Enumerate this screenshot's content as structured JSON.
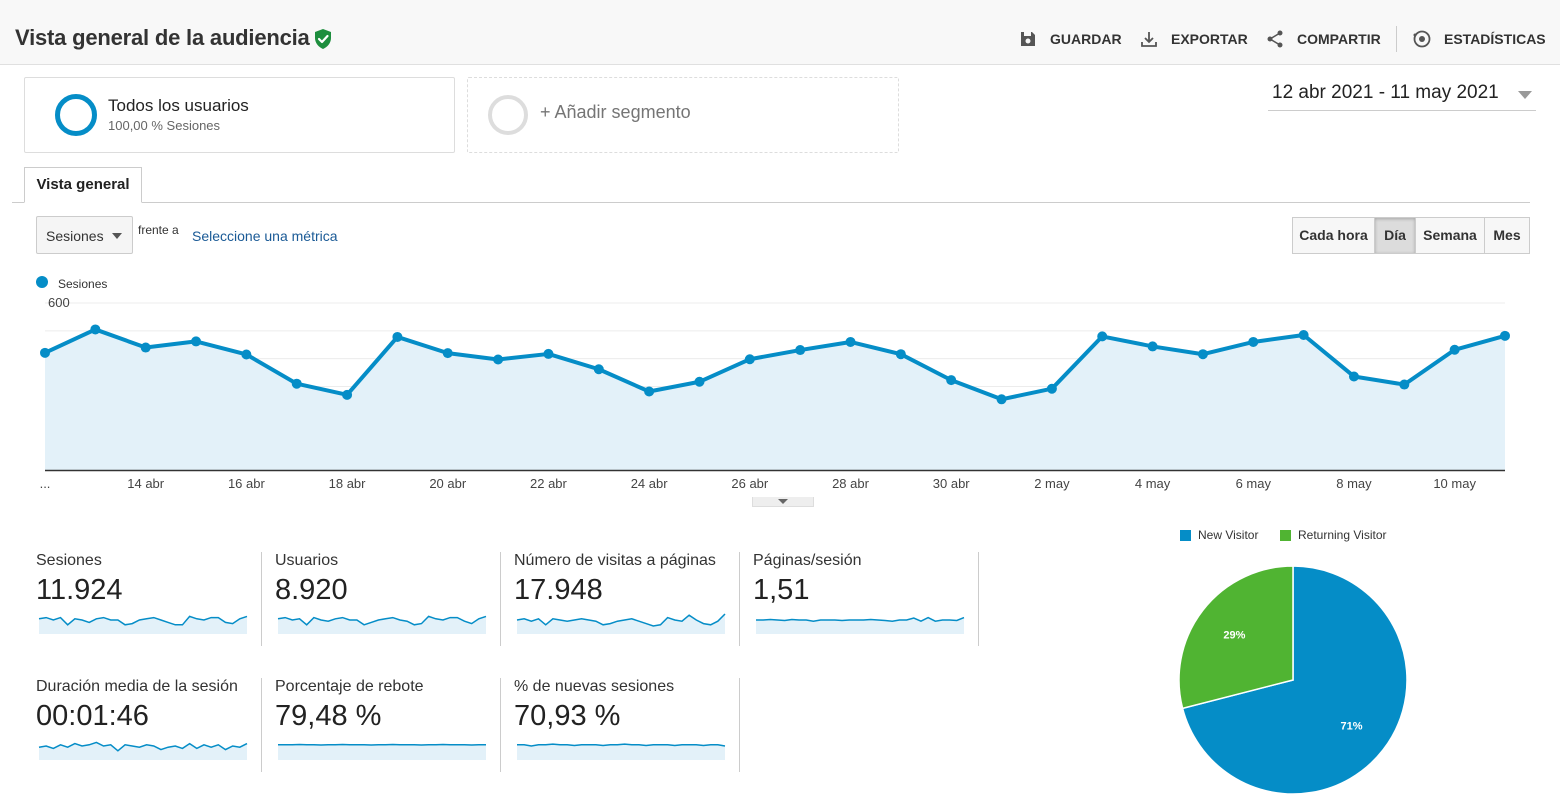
{
  "header": {
    "title": "Vista general de la audiencia",
    "actions": [
      {
        "label": "GUARDAR",
        "icon": "save-icon"
      },
      {
        "label": "EXPORTAR",
        "icon": "download-icon"
      },
      {
        "label": "COMPARTIR",
        "icon": "share-icon"
      },
      {
        "label": "ESTADÍSTICAS",
        "icon": "insights-icon"
      }
    ]
  },
  "segments": {
    "active": {
      "name": "Todos los usuarios",
      "sub": "100,00 % Sesiones",
      "color": "#058dc7"
    },
    "add_label": "+ Añadir segmento"
  },
  "date_range": "12 abr 2021 - 11 may 2021",
  "tabs": [
    {
      "label": "Vista general"
    }
  ],
  "controls": {
    "metric": "Sesiones",
    "vs_label": "frente a",
    "select_metric": "Seleccione una métrica",
    "granularity": [
      "Cada hora",
      "Día",
      "Semana",
      "Mes"
    ],
    "granularity_active": "Día"
  },
  "chart_data": [
    {
      "type": "area",
      "series": [
        {
          "name": "Sesiones",
          "color": "#058dc7",
          "values": [
            421,
            505,
            440,
            462,
            415,
            310,
            270,
            478,
            420,
            397,
            417,
            362,
            282,
            317,
            398,
            431,
            460,
            416,
            323,
            254,
            292,
            480,
            444,
            416,
            460,
            485,
            336,
            307,
            432,
            482
          ]
        }
      ],
      "x_labels": [
        "...",
        "14 abr",
        "16 abr",
        "18 abr",
        "20 abr",
        "22 abr",
        "24 abr",
        "26 abr",
        "28 abr",
        "30 abr",
        "2 may",
        "4 may",
        "6 may",
        "8 may",
        "10 may"
      ],
      "y_ticks": [
        200,
        400,
        600
      ],
      "ylim": [
        0,
        600
      ],
      "legend": "top-left",
      "grid": true
    },
    {
      "type": "pie",
      "labels": [
        "New Visitor",
        "Returning Visitor"
      ],
      "values": [
        71,
        29
      ],
      "value_labels": [
        "71%",
        "29%"
      ],
      "colors": [
        "#058dc7",
        "#50b432"
      ],
      "legend": "top"
    }
  ],
  "stats": [
    {
      "label": "Sesiones",
      "value": "11.924",
      "spark": [
        0.55,
        0.6,
        0.5,
        0.6,
        0.3,
        0.55,
        0.5,
        0.4,
        0.55,
        0.6,
        0.5,
        0.5,
        0.3,
        0.35,
        0.5,
        0.55,
        0.6,
        0.5,
        0.4,
        0.3,
        0.3,
        0.65,
        0.55,
        0.5,
        0.6,
        0.6,
        0.4,
        0.35,
        0.55,
        0.65
      ]
    },
    {
      "label": "Usuarios",
      "value": "8.920",
      "spark": [
        0.55,
        0.6,
        0.5,
        0.55,
        0.3,
        0.6,
        0.5,
        0.45,
        0.55,
        0.6,
        0.5,
        0.5,
        0.3,
        0.4,
        0.5,
        0.55,
        0.6,
        0.5,
        0.45,
        0.3,
        0.35,
        0.65,
        0.55,
        0.5,
        0.6,
        0.6,
        0.45,
        0.35,
        0.55,
        0.65
      ]
    },
    {
      "label": "Número de visitas a páginas",
      "value": "17.948",
      "spark": [
        0.5,
        0.55,
        0.45,
        0.55,
        0.3,
        0.55,
        0.5,
        0.45,
        0.5,
        0.55,
        0.5,
        0.45,
        0.3,
        0.35,
        0.45,
        0.5,
        0.55,
        0.45,
        0.35,
        0.25,
        0.3,
        0.6,
        0.5,
        0.45,
        0.7,
        0.5,
        0.35,
        0.3,
        0.45,
        0.75
      ]
    },
    {
      "label": "Páginas/sesión",
      "value": "1,51",
      "spark": [
        0.5,
        0.5,
        0.52,
        0.5,
        0.48,
        0.52,
        0.5,
        0.5,
        0.45,
        0.5,
        0.5,
        0.5,
        0.48,
        0.5,
        0.5,
        0.5,
        0.52,
        0.5,
        0.48,
        0.45,
        0.5,
        0.5,
        0.58,
        0.45,
        0.6,
        0.45,
        0.5,
        0.5,
        0.48,
        0.6
      ]
    },
    {
      "label": "Duración media de la sesión",
      "value": "00:01:46",
      "spark": [
        0.45,
        0.5,
        0.4,
        0.55,
        0.45,
        0.6,
        0.5,
        0.55,
        0.65,
        0.5,
        0.55,
        0.3,
        0.55,
        0.5,
        0.45,
        0.55,
        0.5,
        0.35,
        0.45,
        0.5,
        0.4,
        0.6,
        0.4,
        0.55,
        0.45,
        0.55,
        0.35,
        0.5,
        0.45,
        0.6
      ]
    },
    {
      "label": "Porcentaje de rebote",
      "value": "79,48 %",
      "spark": [
        0.55,
        0.55,
        0.55,
        0.56,
        0.55,
        0.55,
        0.54,
        0.55,
        0.55,
        0.56,
        0.55,
        0.55,
        0.55,
        0.54,
        0.55,
        0.55,
        0.56,
        0.55,
        0.55,
        0.55,
        0.54,
        0.55,
        0.55,
        0.56,
        0.55,
        0.55,
        0.55,
        0.54,
        0.55,
        0.55
      ]
    },
    {
      "label": "% de nuevas sesiones",
      "value": "70,93 %",
      "spark": [
        0.55,
        0.55,
        0.5,
        0.55,
        0.55,
        0.58,
        0.55,
        0.55,
        0.52,
        0.55,
        0.55,
        0.55,
        0.52,
        0.55,
        0.55,
        0.58,
        0.55,
        0.55,
        0.52,
        0.55,
        0.55,
        0.55,
        0.52,
        0.55,
        0.55,
        0.55,
        0.52,
        0.55,
        0.55,
        0.5
      ]
    }
  ]
}
